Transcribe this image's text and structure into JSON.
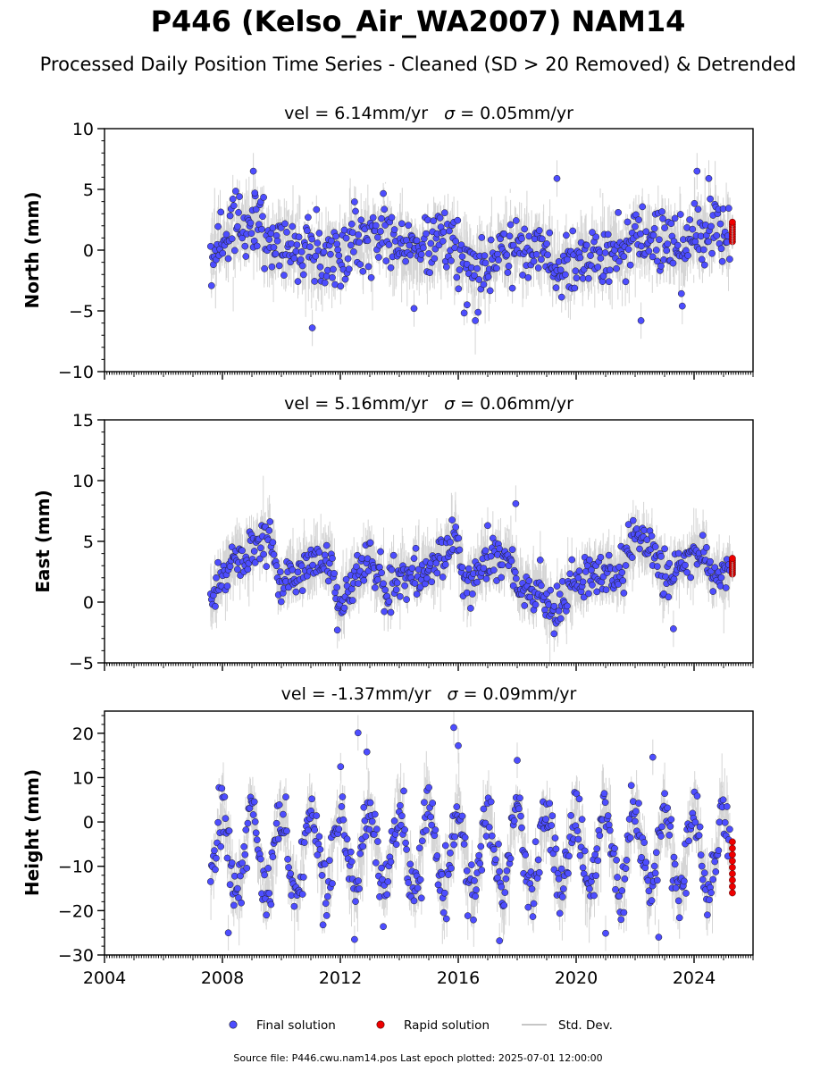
{
  "header": {
    "title": "P446 (Kelso_Air_WA2007) NAM14",
    "subtitle": "Processed Daily Position Time Series - Cleaned (SD > 20 Removed) & Detrended"
  },
  "legend": {
    "final": "Final solution",
    "rapid": "Rapid solution",
    "std": "Std. Dev."
  },
  "footer": {
    "text": "Source file: P446.cwu.nam14.pos  Last epoch plotted: 2025-07-01 12:00:00"
  },
  "colors": {
    "final": "#4d4dff",
    "rapid": "#ee0000",
    "stddev": "#b3b3b3"
  },
  "chart_data": [
    {
      "type": "scatter",
      "title_prefix": "vel = 6.14mm/yr",
      "title_sigma": "= 0.05mm/yr",
      "ylabel": "North (mm)",
      "xlim": [
        2004,
        2026
      ],
      "ylim": [
        -10,
        10
      ],
      "yticks": [
        -10,
        -5,
        0,
        5,
        10
      ],
      "xticks": [
        2004,
        2008,
        2012,
        2016,
        2020,
        2024
      ],
      "xtick_labels": [
        "2004",
        "2008",
        "2012",
        "2016",
        "2020",
        "2024"
      ],
      "seasonal_signal_mm": [
        [
          2007.6,
          0.0
        ],
        [
          2008.5,
          1.5
        ],
        [
          2009.2,
          2.0
        ],
        [
          2009.8,
          0.2
        ],
        [
          2010.5,
          0.5
        ],
        [
          2011.5,
          -1.0
        ],
        [
          2012.5,
          0.5
        ],
        [
          2013.5,
          1.5
        ],
        [
          2014.5,
          -0.5
        ],
        [
          2015.5,
          1.0
        ],
        [
          2016.5,
          -1.5
        ],
        [
          2017.5,
          0.0
        ],
        [
          2018.5,
          0.5
        ],
        [
          2019.3,
          -1.0
        ],
        [
          2019.8,
          -1.5
        ],
        [
          2020.5,
          -0.5
        ],
        [
          2021.5,
          0.0
        ],
        [
          2022.5,
          1.0
        ],
        [
          2023.5,
          0.5
        ],
        [
          2024.5,
          1.5
        ],
        [
          2025.3,
          1.5
        ]
      ],
      "noise_sd_mm": 1.4,
      "outliers": [
        [
          2009.05,
          6.5
        ],
        [
          2009.1,
          4.7
        ],
        [
          2011.05,
          -6.4
        ],
        [
          2019.35,
          5.9
        ],
        [
          2024.1,
          6.5
        ],
        [
          2024.5,
          5.9
        ],
        [
          2022.2,
          -5.8
        ],
        [
          2023.6,
          -4.6
        ],
        [
          2016.3,
          -4.5
        ],
        [
          2014.5,
          -4.8
        ]
      ],
      "final_series": {
        "x_start": 2007.6,
        "x_end": 2025.22
      },
      "rapid_series": {
        "x": 2025.3,
        "y_range": [
          0.7,
          2.3
        ]
      }
    },
    {
      "type": "scatter",
      "title_prefix": "vel = 5.16mm/yr",
      "title_sigma": "= 0.06mm/yr",
      "ylabel": "East (mm)",
      "xlim": [
        2004,
        2026
      ],
      "ylim": [
        -5,
        15
      ],
      "yticks": [
        -5,
        0,
        5,
        10,
        15
      ],
      "xticks": [
        2004,
        2008,
        2012,
        2016,
        2020,
        2024
      ],
      "xtick_labels": [
        "2004",
        "2008",
        "2012",
        "2016",
        "2020",
        "2024"
      ],
      "seasonal_signal_mm": [
        [
          2007.6,
          0.0
        ],
        [
          2008.0,
          2.5
        ],
        [
          2008.5,
          3.5
        ],
        [
          2009.0,
          4.5
        ],
        [
          2009.6,
          6.0
        ],
        [
          2009.9,
          1.0
        ],
        [
          2010.5,
          2.5
        ],
        [
          2011.0,
          3.0
        ],
        [
          2011.6,
          4.0
        ],
        [
          2011.9,
          0.0
        ],
        [
          2012.5,
          2.0
        ],
        [
          2013.0,
          3.5
        ],
        [
          2013.5,
          1.0
        ],
        [
          2014.5,
          2.5
        ],
        [
          2015.5,
          3.5
        ],
        [
          2015.9,
          6.0
        ],
        [
          2016.2,
          1.0
        ],
        [
          2016.8,
          3.0
        ],
        [
          2017.8,
          4.0
        ],
        [
          2018.1,
          1.0
        ],
        [
          2018.8,
          1.5
        ],
        [
          2019.2,
          -1.5
        ],
        [
          2019.6,
          0.5
        ],
        [
          2020.5,
          2.5
        ],
        [
          2021.4,
          2.0
        ],
        [
          2022.0,
          5.0
        ],
        [
          2022.6,
          4.5
        ],
        [
          2023.0,
          2.0
        ],
        [
          2023.8,
          3.5
        ],
        [
          2024.4,
          4.0
        ],
        [
          2024.6,
          2.0
        ],
        [
          2025.3,
          2.5
        ]
      ],
      "noise_sd_mm": 0.9,
      "outliers": [
        [
          2017.95,
          8.1
        ],
        [
          2017.0,
          6.3
        ],
        [
          2019.25,
          -2.6
        ],
        [
          2011.9,
          -2.3
        ],
        [
          2023.3,
          -2.2
        ]
      ],
      "final_series": {
        "x_start": 2007.6,
        "x_end": 2025.22
      },
      "rapid_series": {
        "x": 2025.3,
        "y_range": [
          2.3,
          3.6
        ]
      }
    },
    {
      "type": "scatter",
      "title_prefix": "vel = -1.37mm/yr",
      "title_sigma": "= 0.09mm/yr",
      "ylabel": "Height (mm)",
      "xlim": [
        2004,
        2026
      ],
      "ylim": [
        -30,
        25
      ],
      "yticks": [
        -30,
        -20,
        -10,
        0,
        10,
        20
      ],
      "xticks": [
        2004,
        2008,
        2012,
        2016,
        2020,
        2024
      ],
      "xtick_labels": [
        "2004",
        "2008",
        "2012",
        "2016",
        "2020",
        "2024"
      ],
      "seasonal_amplitude_mm": 9.0,
      "seasonal_offset_mm": -7.0,
      "noise_sd_mm": 3.6,
      "outliers": [
        [
          2015.85,
          21.3
        ],
        [
          2012.6,
          20.1
        ],
        [
          2012.9,
          15.8
        ],
        [
          2016.0,
          17.2
        ],
        [
          2017.4,
          -26.8
        ],
        [
          2022.8,
          -26.0
        ],
        [
          2008.2,
          -25.0
        ],
        [
          2021.0,
          -25.1
        ],
        [
          2018.0,
          13.9
        ],
        [
          2022.6,
          14.6
        ]
      ],
      "final_series": {
        "x_start": 2007.6,
        "x_end": 2025.22
      },
      "rapid_series": {
        "x": 2025.3,
        "y_range": [
          -16,
          -4.5
        ]
      }
    }
  ]
}
